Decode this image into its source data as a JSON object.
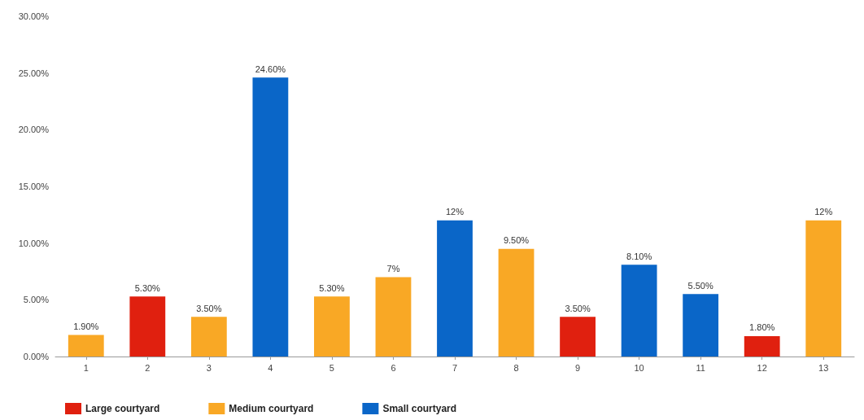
{
  "chart_data": {
    "type": "bar",
    "categories": [
      "1",
      "2",
      "3",
      "4",
      "5",
      "6",
      "7",
      "8",
      "9",
      "10",
      "11",
      "12",
      "13"
    ],
    "series": [
      {
        "name": "Large courtyard",
        "color": "#e0200f",
        "values": [
          null,
          5.3,
          null,
          null,
          null,
          null,
          null,
          null,
          3.5,
          null,
          null,
          1.8,
          null
        ],
        "value_labels": [
          null,
          "5.30%",
          null,
          null,
          null,
          null,
          null,
          null,
          "3.50%",
          null,
          null,
          "1.80%",
          null
        ]
      },
      {
        "name": "Medium courtyard",
        "color": "#f9a825",
        "values": [
          1.9,
          null,
          3.5,
          null,
          5.3,
          7,
          null,
          9.5,
          null,
          null,
          null,
          null,
          12
        ],
        "value_labels": [
          "1.90%",
          null,
          "3.50%",
          null,
          "5.30%",
          "7%",
          null,
          "9.50%",
          null,
          null,
          null,
          null,
          "12%"
        ]
      },
      {
        "name": "Small courtyard",
        "color": "#0a66c8",
        "values": [
          null,
          null,
          null,
          24.6,
          null,
          null,
          12,
          null,
          null,
          8.1,
          5.5,
          null,
          null
        ],
        "value_labels": [
          null,
          null,
          null,
          "24.60%",
          null,
          null,
          "12%",
          null,
          null,
          "8.10%",
          "5.50%",
          null,
          null
        ]
      }
    ],
    "ylim": [
      0,
      30
    ],
    "yticks": [
      {
        "value": 0,
        "label": "0.00%"
      },
      {
        "value": 5,
        "label": "5.00%"
      },
      {
        "value": 10,
        "label": "10.00%"
      },
      {
        "value": 15,
        "label": "15.00%"
      },
      {
        "value": 20,
        "label": "20.00%"
      },
      {
        "value": 25,
        "label": "25.00%"
      },
      {
        "value": 30,
        "label": "30.00%"
      }
    ],
    "grid": false,
    "legend": "bottom left"
  }
}
